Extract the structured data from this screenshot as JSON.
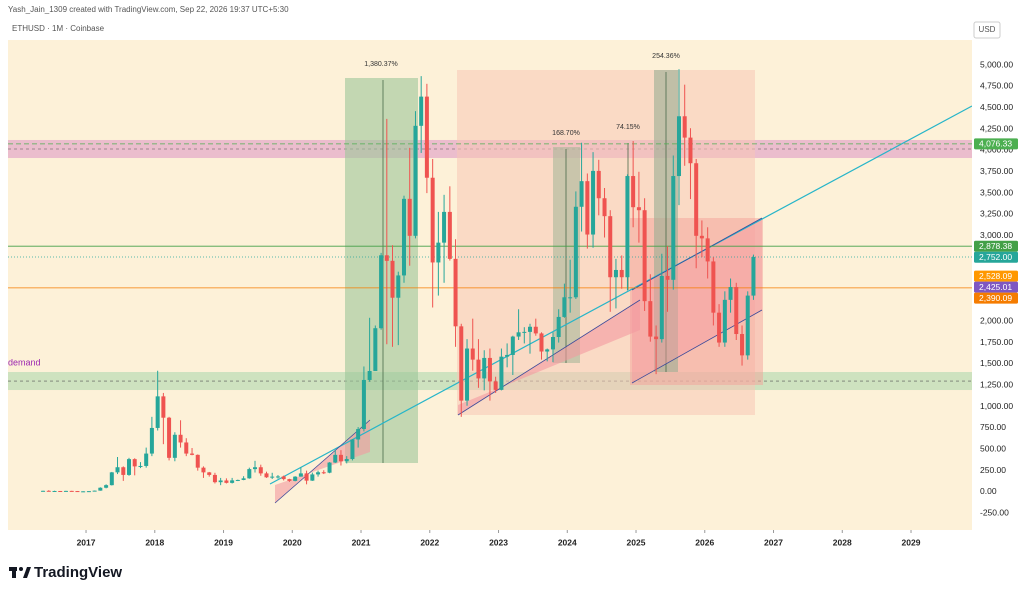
{
  "header": {
    "credit": "Yash_Jain_1309 created with TradingView.com, Sep 22, 2026 19:37 UTC+5:30",
    "symbol": "ETHUSD · 1M · Coinbase",
    "currency": "USD"
  },
  "footer": {
    "brand": "TradingView"
  },
  "chart_data": {
    "type": "candlestick",
    "up_color": "#26a69a",
    "down_color": "#ef5350",
    "xlim": [
      2015.865,
      2029.887
    ],
    "xticks": [
      2017,
      2018,
      2019,
      2020,
      2021,
      2022,
      2023,
      2024,
      2025,
      2026,
      2027,
      2028,
      2029
    ],
    "ylim": [
      -445,
      5293
    ],
    "yticks": [
      {
        "value": -250,
        "label": "-250.00"
      },
      {
        "value": 0,
        "label": "0.00"
      },
      {
        "value": 250,
        "label": "250.00"
      },
      {
        "value": 500,
        "label": "500.00"
      },
      {
        "value": 750,
        "label": "750.00"
      },
      {
        "value": 1000,
        "label": "1,000.00"
      },
      {
        "value": 1250,
        "label": "1,250.00"
      },
      {
        "value": 1500,
        "label": "1,500.00"
      },
      {
        "value": 1750,
        "label": "1,750.00"
      },
      {
        "value": 2000,
        "label": "2,000.00"
      },
      {
        "value": 2250,
        "label": "2,250.00"
      },
      {
        "value": 2500,
        "label": "2,500.00"
      },
      {
        "value": 2750,
        "label": "2,750.00"
      },
      {
        "value": 3000,
        "label": "3,000.00"
      },
      {
        "value": 3250,
        "label": "3,250.00"
      },
      {
        "value": 3500,
        "label": "3,500.00"
      },
      {
        "value": 3750,
        "label": "3,750.00"
      },
      {
        "value": 4000,
        "label": "4,000.00"
      },
      {
        "value": 4250,
        "label": "4,250.00"
      },
      {
        "value": 4500,
        "label": "4,500.00"
      },
      {
        "value": 4750,
        "label": "4,750.00"
      },
      {
        "value": 5000,
        "label": "5,000.00"
      }
    ],
    "x": [
      2016.375,
      2016.458,
      2016.542,
      2016.625,
      2016.708,
      2016.792,
      2016.875,
      2016.958,
      2017.042,
      2017.125,
      2017.208,
      2017.292,
      2017.375,
      2017.458,
      2017.542,
      2017.625,
      2017.708,
      2017.792,
      2017.875,
      2017.958,
      2018.042,
      2018.125,
      2018.208,
      2018.292,
      2018.375,
      2018.458,
      2018.542,
      2018.625,
      2018.708,
      2018.792,
      2018.875,
      2018.958,
      2019.042,
      2019.125,
      2019.208,
      2019.292,
      2019.375,
      2019.458,
      2019.542,
      2019.625,
      2019.708,
      2019.792,
      2019.875,
      2019.958,
      2020.042,
      2020.125,
      2020.208,
      2020.292,
      2020.375,
      2020.458,
      2020.542,
      2020.625,
      2020.708,
      2020.792,
      2020.875,
      2020.958,
      2021.042,
      2021.125,
      2021.208,
      2021.292,
      2021.375,
      2021.458,
      2021.542,
      2021.625,
      2021.708,
      2021.792,
      2021.875,
      2021.958,
      2022.042,
      2022.125,
      2022.208,
      2022.292,
      2022.375,
      2022.458,
      2022.542,
      2022.625,
      2022.708,
      2022.792,
      2022.875,
      2022.958,
      2023.042,
      2023.125,
      2023.208,
      2023.292,
      2023.375,
      2023.458,
      2023.542,
      2023.625,
      2023.708,
      2023.792,
      2023.875,
      2023.958,
      2024.042,
      2024.125,
      2024.208,
      2024.292,
      2024.375,
      2024.458,
      2024.542,
      2024.625,
      2024.708,
      2024.792,
      2024.875,
      2024.958,
      2025.042,
      2025.125,
      2025.208,
      2025.292,
      2025.375,
      2025.458,
      2025.542,
      2025.625,
      2025.708,
      2025.792,
      2025.875,
      2025.958,
      2026.042,
      2026.125,
      2026.208,
      2026.292,
      2026.375,
      2026.458,
      2026.542,
      2026.625,
      2026.708
    ],
    "open": [
      10,
      14,
      12,
      12,
      11,
      13,
      11,
      8,
      8,
      10,
      16,
      50,
      80,
      230,
      290,
      200,
      385,
      300,
      305,
      450,
      750,
      1120,
      870,
      400,
      670,
      580,
      450,
      435,
      285,
      230,
      200,
      115,
      135,
      107,
      136,
      141,
      160,
      268,
      290,
      218,
      172,
      180,
      182,
      151,
      130,
      180,
      218,
      133,
      206,
      231,
      226,
      345,
      435,
      360,
      386,
      615,
      737,
      1312,
      1417,
      1918,
      2772,
      2707,
      2275,
      2536,
      3433,
      3000,
      4288,
      4630,
      3680,
      2688,
      2920,
      3280,
      2730,
      1940,
      1070,
      1680,
      1550,
      1330,
      1570,
      1295,
      1196,
      1585,
      1605,
      1820,
      1870,
      1875,
      1935,
      1857,
      1645,
      1670,
      1815,
      2050,
      2280,
      2280,
      3340,
      3640,
      3015,
      3760,
      3440,
      3230,
      2515,
      2600,
      2515,
      3700,
      3335,
      3300,
      2235,
      1820,
      1790,
      2530,
      2485,
      3700,
      4400,
      4150,
      3850,
      3000,
      2970,
      2700,
      2100,
      1750,
      2250,
      2400,
      1850,
      1600,
      2300
    ],
    "high": [
      15,
      21,
      15,
      12,
      14,
      14,
      12,
      9,
      11,
      17,
      55,
      90,
      235,
      410,
      300,
      400,
      395,
      350,
      520,
      880,
      1420,
      1160,
      880,
      700,
      840,
      630,
      515,
      440,
      300,
      235,
      225,
      165,
      160,
      165,
      145,
      185,
      285,
      365,
      320,
      238,
      225,
      198,
      192,
      155,
      185,
      290,
      250,
      227,
      250,
      255,
      350,
      490,
      490,
      420,
      620,
      760,
      1470,
      2040,
      1950,
      2800,
      4370,
      2890,
      2580,
      3470,
      4030,
      4460,
      4870,
      4780,
      3900,
      3280,
      3480,
      3580,
      2960,
      1970,
      1790,
      2030,
      1790,
      1660,
      1680,
      1350,
      1680,
      1740,
      1830,
      2140,
      1930,
      1970,
      2030,
      1870,
      1680,
      1870,
      2140,
      2440,
      2720,
      3520,
      4090,
      3730,
      3980,
      3890,
      3560,
      3300,
      2730,
      2770,
      3720,
      4110,
      3750,
      3440,
      2550,
      1950,
      2790,
      2880,
      3940,
      4950,
      4770,
      4260,
      3900,
      3180,
      3100,
      2750,
      2200,
      2350,
      2500,
      2450,
      1950,
      2350,
      2780
    ],
    "low": [
      9,
      11,
      10,
      10,
      11,
      10,
      8,
      6,
      8,
      10,
      15,
      43,
      76,
      210,
      130,
      190,
      195,
      280,
      285,
      420,
      720,
      560,
      370,
      360,
      520,
      420,
      430,
      250,
      165,
      180,
      100,
      80,
      100,
      100,
      128,
      138,
      155,
      228,
      190,
      165,
      152,
      157,
      135,
      118,
      125,
      180,
      90,
      130,
      180,
      210,
      220,
      340,
      310,
      335,
      370,
      520,
      710,
      1290,
      1450,
      1900,
      1730,
      1700,
      1720,
      2450,
      2650,
      2970,
      3970,
      3500,
      2160,
      2300,
      2450,
      2710,
      1700,
      880,
      1010,
      1420,
      1220,
      1190,
      1070,
      1160,
      1190,
      1460,
      1370,
      1780,
      1740,
      1620,
      1830,
      1550,
      1530,
      1520,
      1750,
      2040,
      2100,
      2260,
      3050,
      2850,
      2860,
      3240,
      2980,
      2110,
      2150,
      2380,
      2360,
      3100,
      2920,
      2120,
      1760,
      1380,
      1750,
      2110,
      2370,
      3360,
      3820,
      3430,
      2620,
      2750,
      2500,
      1950,
      1700,
      1700,
      2100,
      1780,
      1480,
      1550,
      2250
    ],
    "close": [
      14,
      12,
      12,
      11,
      13,
      11,
      8,
      8,
      10,
      16,
      50,
      80,
      230,
      290,
      200,
      385,
      300,
      305,
      450,
      750,
      1120,
      870,
      400,
      670,
      580,
      450,
      435,
      285,
      230,
      200,
      115,
      135,
      107,
      136,
      141,
      160,
      268,
      290,
      218,
      172,
      180,
      182,
      151,
      130,
      180,
      218,
      133,
      206,
      231,
      226,
      345,
      435,
      360,
      386,
      615,
      737,
      1312,
      1417,
      1918,
      2772,
      2707,
      2275,
      2536,
      3433,
      3000,
      4288,
      4630,
      3680,
      2688,
      2920,
      3280,
      2730,
      1940,
      1070,
      1680,
      1550,
      1330,
      1570,
      1295,
      1196,
      1585,
      1605,
      1820,
      1870,
      1875,
      1935,
      1857,
      1645,
      1670,
      1815,
      2050,
      2280,
      2280,
      3340,
      3640,
      3015,
      3760,
      3440,
      3230,
      2515,
      2600,
      2515,
      3700,
      3335,
      3300,
      2235,
      1820,
      1790,
      2530,
      2485,
      3700,
      4400,
      4150,
      3850,
      3000,
      2970,
      2700,
      2100,
      1750,
      2250,
      2400,
      1850,
      1600,
      2300,
      2752
    ],
    "zones": [
      {
        "label": "demand",
        "from": 1194,
        "to": 1405,
        "color": "#b9dcb5"
      },
      {
        "from": 3911,
        "to": 4122,
        "color": "#e3a6c9"
      }
    ],
    "price_labels": [
      {
        "value": 4076.33,
        "label": "4,076.33",
        "color": "#4caf50",
        "line": "dashed"
      },
      {
        "value": 2878.38,
        "label": "2,878.38",
        "color": "#43a047",
        "line": "solid"
      },
      {
        "value": 2752,
        "label": "2,752.00",
        "color": "#26a69a",
        "line": "dotted"
      },
      {
        "value": 2528.09,
        "label": "2,528.09",
        "color": "#ff9800"
      },
      {
        "value": 2425.01,
        "label": "2,425.01",
        "color": "#7e57c2"
      },
      {
        "value": 2390.09,
        "label": "2,390.09",
        "color": "#f57c00",
        "line": "solid"
      }
    ],
    "annotations": [
      "1,380.37%",
      "168.70%",
      "74.15%",
      "254.36%"
    ]
  }
}
